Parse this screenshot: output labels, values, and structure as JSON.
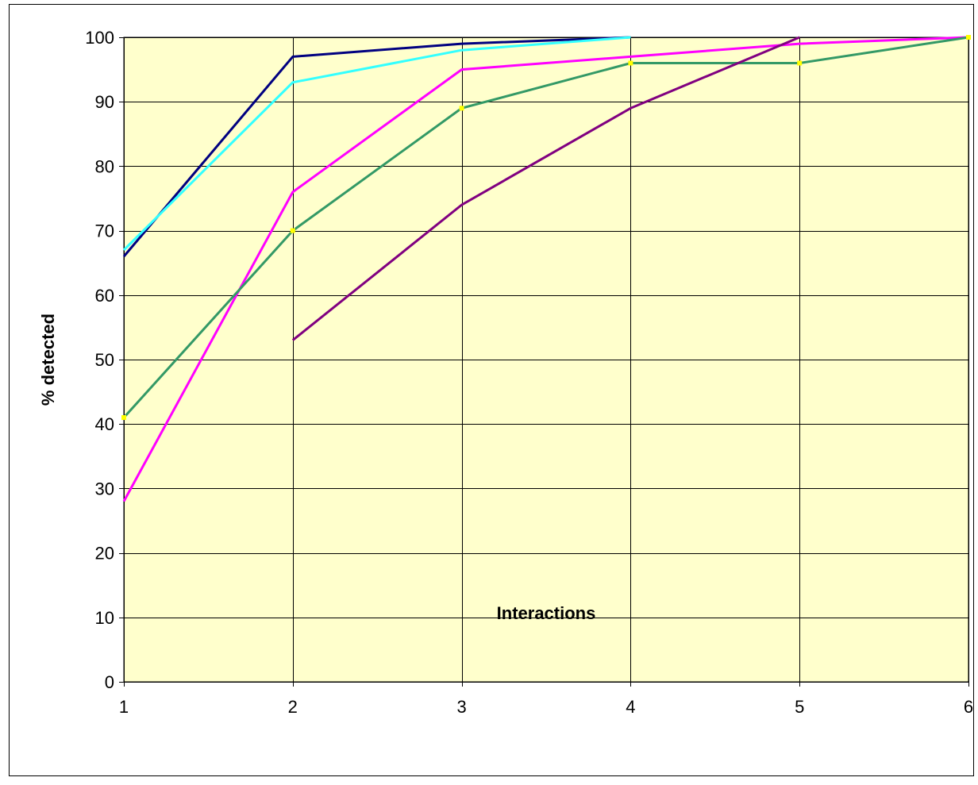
{
  "colors": {
    "plot_background": "#ffffcc",
    "gridline": "#000000",
    "frame": "#000000",
    "marker": "#ffff00"
  },
  "chart_data": {
    "type": "line",
    "title": "",
    "xlabel": "Interactions",
    "ylabel": "% detected",
    "x": [
      1,
      2,
      3,
      4,
      5,
      6
    ],
    "xlim": [
      1,
      6
    ],
    "ylim": [
      0,
      100
    ],
    "yticks": [
      0,
      10,
      20,
      30,
      40,
      50,
      60,
      70,
      80,
      90,
      100
    ],
    "xtick_labels": [
      "1",
      "2",
      "3",
      "4",
      "5",
      "6"
    ],
    "grid": true,
    "legend": "none",
    "series": [
      {
        "color": "#000080",
        "markers": false,
        "values": [
          66,
          97,
          99,
          100,
          null,
          null
        ]
      },
      {
        "color": "#33ffff",
        "markers": false,
        "values": [
          67,
          93,
          98,
          100,
          null,
          null
        ]
      },
      {
        "color": "#ff00ff",
        "markers": false,
        "values": [
          28,
          76,
          95,
          97,
          99,
          100
        ]
      },
      {
        "color": "#339966",
        "markers": true,
        "values": [
          41,
          70,
          89,
          96,
          96,
          100
        ]
      },
      {
        "color": "#800080",
        "markers": false,
        "values": [
          null,
          53,
          74,
          89,
          100,
          null
        ]
      }
    ]
  }
}
